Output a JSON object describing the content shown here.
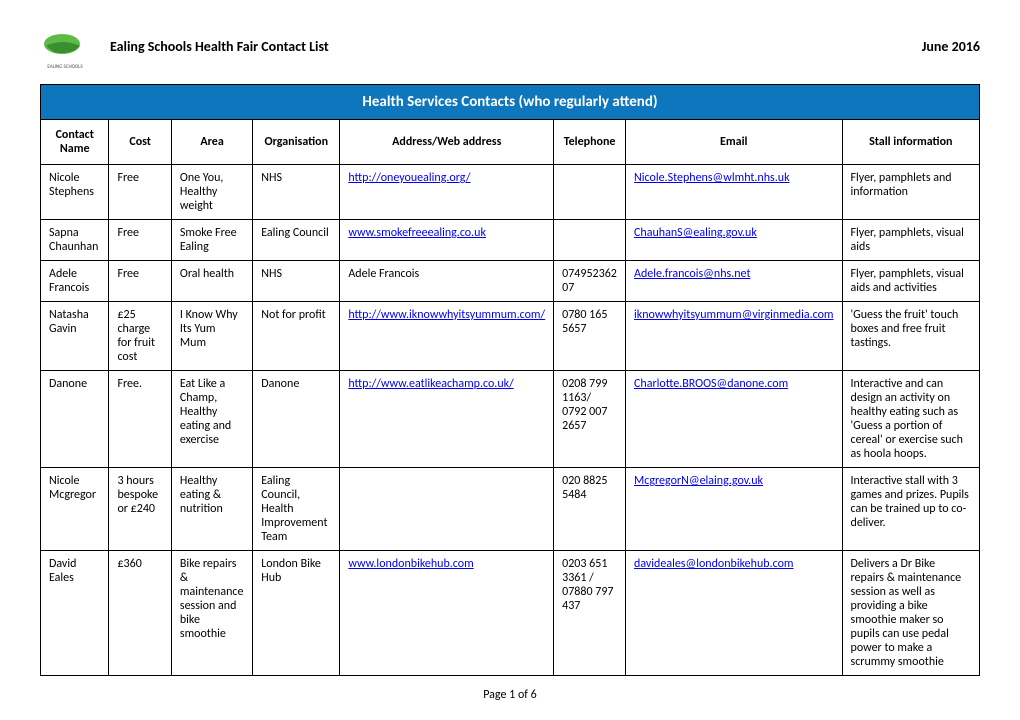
{
  "logo": {
    "top_color": "#5dbb46",
    "bottom_color": "#3a8e2e",
    "label_color": "#4a4a4a"
  },
  "header": {
    "title": "Ealing Schools Health Fair Contact List",
    "date": "June 2016"
  },
  "table": {
    "banner": "Health Services Contacts (who regularly attend)",
    "banner_bg": "#0e76bc",
    "banner_fg": "#ffffff",
    "columns": [
      "Contact Name",
      "Cost",
      "Area",
      "Organisation",
      "Address/Web address",
      "Telephone",
      "Email",
      "Stall information"
    ],
    "rows": [
      {
        "name": "Nicole Stephens",
        "cost": "Free",
        "area": "One You, Healthy weight",
        "org": "NHS",
        "address": "http://oneyouealing.org/",
        "address_is_link": true,
        "telephone": "",
        "email": "Nicole.Stephens@wlmht.nhs.uk",
        "stall": "Flyer, pamphlets and information"
      },
      {
        "name": "Sapna Chaunhan",
        "cost": "Free",
        "area": "Smoke Free Ealing",
        "org": "Ealing Council",
        "address": "www.smokefreeealing.co.uk",
        "address_is_link": true,
        "telephone": "",
        "email": "ChauhanS@ealing.gov.uk",
        "stall": "Flyer, pamphlets, visual aids"
      },
      {
        "name": "Adele Francois",
        "cost": "Free",
        "area": "Oral health",
        "org": "NHS",
        "address": "Adele Francois",
        "address_is_link": false,
        "telephone": "074952362 07",
        "email": "Adele.francois@nhs.net",
        "stall": "Flyer, pamphlets, visual aids and activities"
      },
      {
        "name": "Natasha Gavin",
        "cost": "£25 charge for fruit cost",
        "area": "I Know Why Its Yum Mum",
        "org": "Not for profit",
        "address": "http://www.iknowwhyitsyummum.com/",
        "address_is_link": true,
        "telephone": "0780 165 5657",
        "email": "iknowwhyitsyummum@virginmedia.com",
        "stall": "'Guess the fruit' touch boxes and free fruit tastings."
      },
      {
        "name": "Danone",
        "cost": "Free.",
        "area": "Eat Like a Champ, Healthy eating and exercise",
        "org": "Danone",
        "address": "http://www.eatlikeachamp.co.uk/",
        "address_is_link": true,
        "telephone": "0208 799 1163/ 0792 007 2657",
        "email": "Charlotte.BROOS@danone.com",
        "stall": "Interactive and can design an activity on healthy eating such as 'Guess a portion of cereal' or exercise such as hoola hoops."
      },
      {
        "name": "Nicole Mcgregor",
        "cost": "3 hours bespoke or £240",
        "area": "Healthy eating & nutrition",
        "org": "Ealing Council, Health Improvement Team",
        "address": "",
        "address_is_link": false,
        "telephone": "020 8825 5484",
        "email": "McgregorN@elaing.gov.uk",
        "stall": "Interactive stall with 3 games and prizes. Pupils can be trained up to co-deliver."
      },
      {
        "name": "David Eales",
        "cost": "£360",
        "area": "Bike repairs & maintenance session and bike smoothie",
        "org": "London Bike Hub",
        "address": "www.londonbikehub.com",
        "address_is_link": true,
        "telephone": "0203 651 3361 / 07880 797 437",
        "email": "davideales@londonbikehub.com",
        "stall": "Delivers a Dr Bike repairs & maintenance session as well as providing a bike smoothie maker so pupils can use pedal power to make a scrummy smoothie"
      }
    ]
  },
  "footer": {
    "page": "Page 1 of 6"
  }
}
